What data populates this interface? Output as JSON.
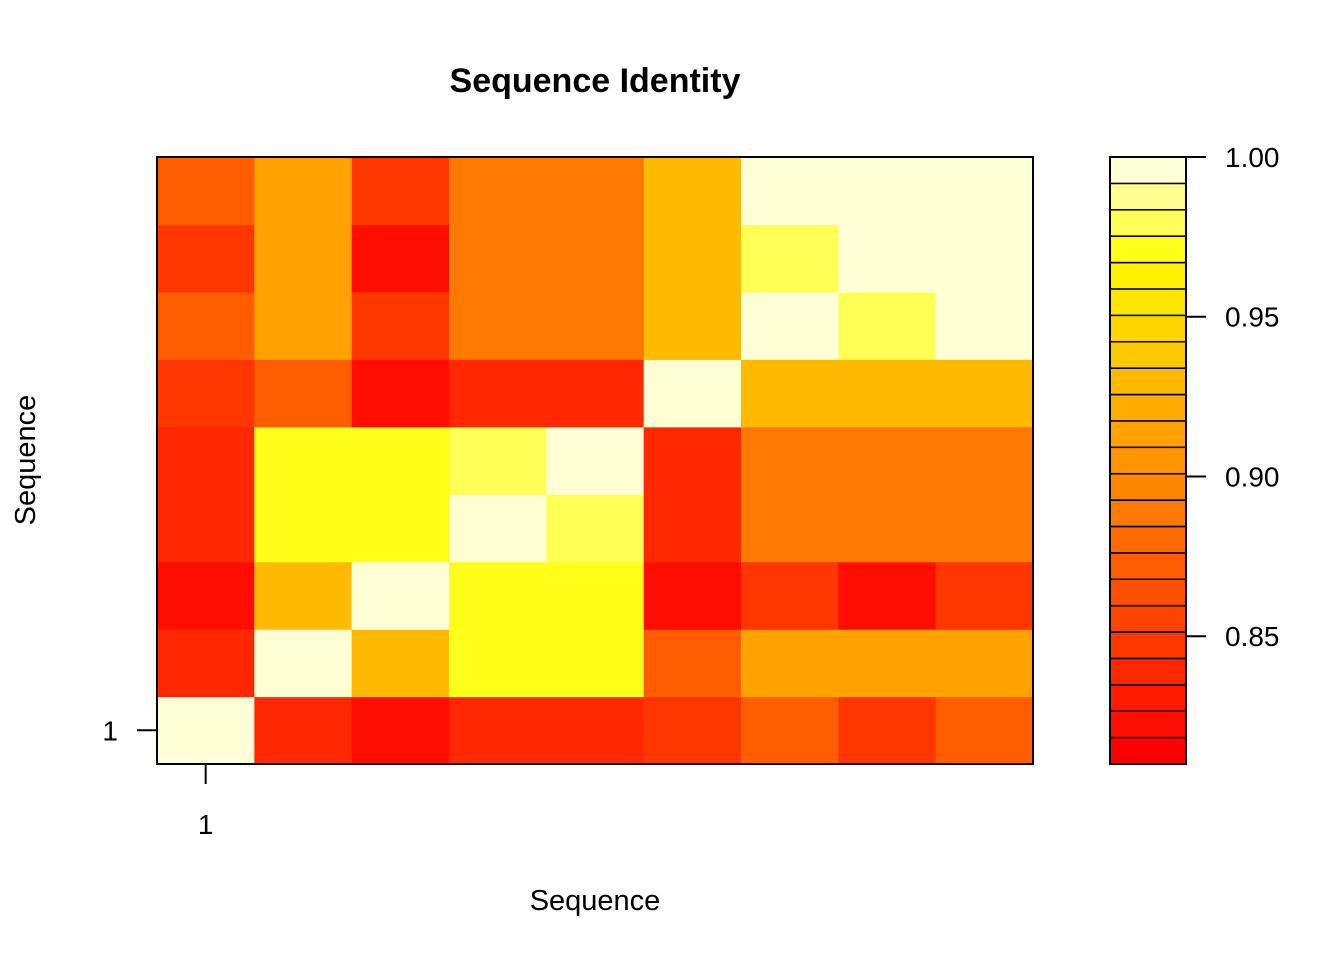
{
  "chart_data": {
    "type": "heatmap",
    "title": "Sequence Identity",
    "xlabel": "Sequence",
    "ylabel": "Sequence",
    "x_ticks": [
      {
        "label": "1",
        "index": 0
      }
    ],
    "y_ticks": [
      {
        "label": "1",
        "index": 0
      }
    ],
    "colorbar": {
      "min": 0.81,
      "max": 1.0,
      "ticks": [
        {
          "label": "1.00",
          "value": 1.0
        },
        {
          "label": "0.95",
          "value": 0.95
        },
        {
          "label": "0.90",
          "value": 0.9
        },
        {
          "label": "0.85",
          "value": 0.85
        }
      ],
      "colors": [
        "#FF0000",
        "#FF0E00",
        "#FF1B00",
        "#FF2800",
        "#FF3600",
        "#FF4300",
        "#FF5000",
        "#FF5D00",
        "#FF6B00",
        "#FF7800",
        "#FF8600",
        "#FF9300",
        "#FFA100",
        "#FFAE00",
        "#FFBB00",
        "#FFC900",
        "#FFD600",
        "#FFE400",
        "#FFF100",
        "#FFFF1A",
        "#FFFF55",
        "#FFFF8F",
        "#FFFFD5"
      ]
    },
    "grid": false,
    "legend": "right",
    "rows": [
      {
        "row": 1,
        "values": [
          1.0,
          0.84,
          0.82,
          0.84,
          0.84,
          0.85,
          0.87,
          0.85,
          0.87
        ]
      },
      {
        "row": 2,
        "values": [
          0.84,
          1.0,
          0.93,
          0.97,
          0.97,
          0.87,
          0.91,
          0.91,
          0.91
        ]
      },
      {
        "row": 3,
        "values": [
          0.82,
          0.93,
          1.0,
          0.97,
          0.97,
          0.82,
          0.85,
          0.82,
          0.85
        ]
      },
      {
        "row": 4,
        "values": [
          0.84,
          0.97,
          0.97,
          1.0,
          0.98,
          0.84,
          0.89,
          0.89,
          0.89
        ]
      },
      {
        "row": 5,
        "values": [
          0.84,
          0.97,
          0.97,
          0.98,
          1.0,
          0.84,
          0.89,
          0.89,
          0.89
        ]
      },
      {
        "row": 6,
        "values": [
          0.85,
          0.87,
          0.82,
          0.84,
          0.84,
          1.0,
          0.93,
          0.93,
          0.93
        ]
      },
      {
        "row": 7,
        "values": [
          0.87,
          0.91,
          0.85,
          0.89,
          0.89,
          0.93,
          1.0,
          0.98,
          1.0
        ]
      },
      {
        "row": 8,
        "values": [
          0.85,
          0.91,
          0.82,
          0.89,
          0.89,
          0.93,
          0.98,
          1.0,
          1.0
        ]
      },
      {
        "row": 9,
        "values": [
          0.87,
          0.91,
          0.85,
          0.89,
          0.89,
          0.93,
          1.0,
          1.0,
          1.0
        ]
      }
    ]
  }
}
